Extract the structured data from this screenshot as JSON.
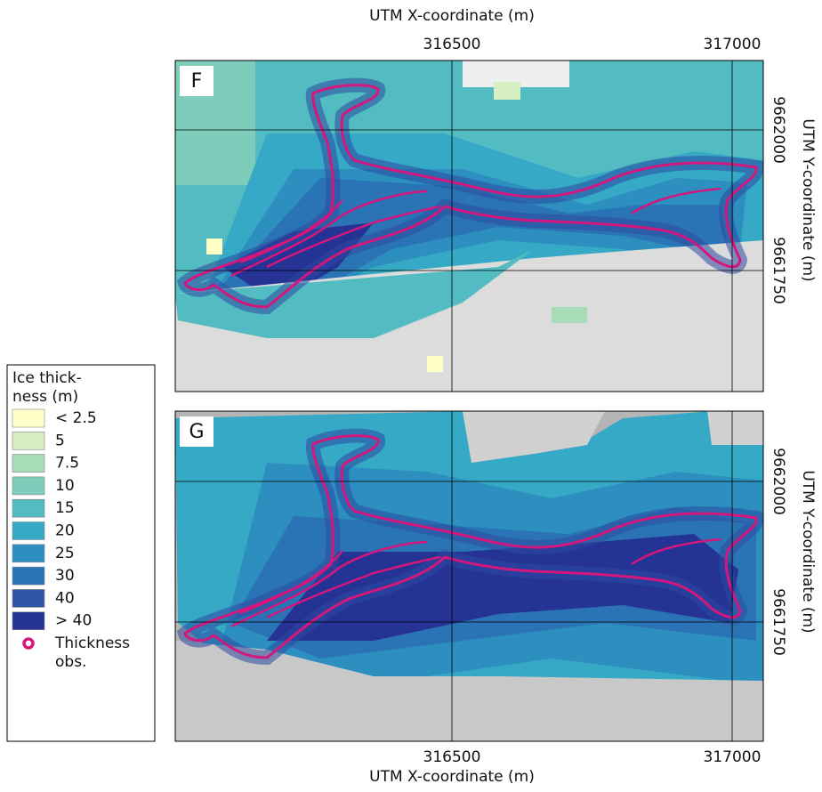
{
  "top_axis": {
    "label": "UTM X-coordinate (m)",
    "ticks": [
      "316500",
      "317000"
    ]
  },
  "panels": [
    {
      "label": "F",
      "y_axis": {
        "label": "UTM Y-coordinate (m)",
        "ticks": [
          "9662000",
          "9661750"
        ]
      }
    },
    {
      "label": "G",
      "y_axis": {
        "label": "UTM Y-coordinate (m)",
        "ticks": [
          "9662000",
          "9661750"
        ]
      }
    }
  ],
  "bottom_axis": {
    "label": "UTM X-coordinate (m)",
    "ticks": [
      "316500",
      "317000"
    ]
  },
  "legend": {
    "title_lines": [
      "Ice thick-",
      "ness (m)"
    ],
    "items": [
      {
        "label": "< 2.5",
        "color": "#ffffc8"
      },
      {
        "label": "5",
        "color": "#d5efc0"
      },
      {
        "label": "7.5",
        "color": "#a6dcb6"
      },
      {
        "label": "10",
        "color": "#7ecdbb"
      },
      {
        "label": "15",
        "color": "#52bcc2"
      },
      {
        "label": "20",
        "color": "#36a9c6"
      },
      {
        "label": "25",
        "color": "#2c8fc0"
      },
      {
        "label": "30",
        "color": "#2a73b4"
      },
      {
        "label": "40",
        "color": "#2c55a4"
      },
      {
        "label": "> 40",
        "color": "#253494"
      }
    ],
    "obs_label_lines": [
      "Thickness",
      "obs."
    ]
  }
}
